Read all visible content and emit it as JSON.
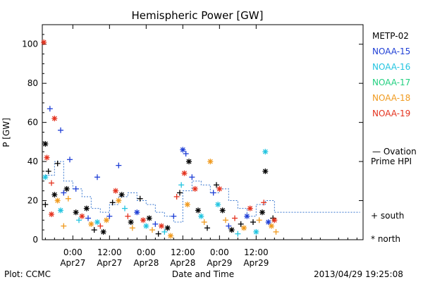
{
  "page": {
    "credit": "Plot: CCMC",
    "timestamp": "2013/04/29 19:25:08"
  },
  "chart_data": {
    "type": "scatter",
    "title": "Hemispheric Power [GW]",
    "xlabel": "Date and Time",
    "ylabel": "P [GW]",
    "ylim": [
      0,
      110
    ],
    "yticks": [
      0,
      20,
      40,
      60,
      80,
      100
    ],
    "xlim_hours": [
      -10,
      95
    ],
    "xticks": [
      {
        "hour": 0,
        "line1": "0:00",
        "line2": "Apr27"
      },
      {
        "hour": 12,
        "line1": "12:00",
        "line2": "Apr27"
      },
      {
        "hour": 24,
        "line1": "0:00",
        "line2": "Apr28"
      },
      {
        "hour": 36,
        "line1": "12:00",
        "line2": "Apr28"
      },
      {
        "hour": 48,
        "line1": "0:00",
        "line2": "Apr29"
      },
      {
        "hour": 60,
        "line1": "12:00",
        "line2": "Apr29"
      }
    ],
    "series": [
      {
        "name": "METP-02",
        "color": "#000000"
      },
      {
        "name": "NOAA-15",
        "color": "#1f3fd6"
      },
      {
        "name": "NOAA-16",
        "color": "#22c4e0"
      },
      {
        "name": "NOAA-17",
        "color": "#22d080"
      },
      {
        "name": "NOAA-18",
        "color": "#f09a1e"
      },
      {
        "name": "NOAA-19",
        "color": "#e4321e"
      }
    ],
    "ovation": {
      "label_line1": "— Ovation",
      "label_line2": "Prime HPI",
      "color": "#3a78d0",
      "x": [
        -9,
        -6,
        -3,
        0,
        3,
        6,
        9,
        12,
        15,
        18,
        21,
        24,
        27,
        30,
        33,
        36,
        39,
        42,
        45,
        48,
        51,
        54,
        57,
        60,
        63,
        66
      ],
      "y": [
        33,
        40,
        30,
        26,
        22,
        16,
        14,
        18,
        22,
        24,
        20,
        18,
        14,
        12,
        9,
        25,
        30,
        28,
        24,
        26,
        20,
        16,
        12,
        18,
        20,
        14
      ]
    },
    "marker_legend": {
      "south": "+ south",
      "north": "* north"
    },
    "points": [
      {
        "s": 5,
        "m": "n",
        "x": -9.5,
        "y": 101
      },
      {
        "s": 0,
        "m": "n",
        "x": -9,
        "y": 49
      },
      {
        "s": 5,
        "m": "n",
        "x": -8.5,
        "y": 42
      },
      {
        "s": 1,
        "m": "s",
        "x": -7.5,
        "y": 67
      },
      {
        "s": 5,
        "m": "n",
        "x": -6,
        "y": 62
      },
      {
        "s": 1,
        "m": "s",
        "x": -4,
        "y": 56
      },
      {
        "s": 0,
        "m": "s",
        "x": -5,
        "y": 39
      },
      {
        "s": 1,
        "m": "s",
        "x": -1,
        "y": 41
      },
      {
        "s": 2,
        "m": "n",
        "x": -9,
        "y": 32
      },
      {
        "s": 0,
        "m": "s",
        "x": -8,
        "y": 35
      },
      {
        "s": 5,
        "m": "s",
        "x": -7,
        "y": 29
      },
      {
        "s": 0,
        "m": "n",
        "x": -6,
        "y": 23
      },
      {
        "s": 4,
        "m": "n",
        "x": -5,
        "y": 20
      },
      {
        "s": 1,
        "m": "s",
        "x": -3,
        "y": 24
      },
      {
        "s": 0,
        "m": "n",
        "x": -2,
        "y": 26
      },
      {
        "s": 4,
        "m": "s",
        "x": -1.5,
        "y": 21
      },
      {
        "s": 2,
        "m": "n",
        "x": -4,
        "y": 15
      },
      {
        "s": 4,
        "m": "s",
        "x": -3,
        "y": 7
      },
      {
        "s": 5,
        "m": "n",
        "x": -7,
        "y": 13
      },
      {
        "s": 0,
        "m": "s",
        "x": -9,
        "y": 18
      },
      {
        "s": 1,
        "m": "s",
        "x": 1,
        "y": 26
      },
      {
        "s": 0,
        "m": "n",
        "x": 1,
        "y": 14
      },
      {
        "s": 2,
        "m": "s",
        "x": 2,
        "y": 10
      },
      {
        "s": 5,
        "m": "n",
        "x": 3,
        "y": 12
      },
      {
        "s": 0,
        "m": "n",
        "x": 4.5,
        "y": 16
      },
      {
        "s": 1,
        "m": "s",
        "x": 5,
        "y": 11
      },
      {
        "s": 4,
        "m": "n",
        "x": 6,
        "y": 8
      },
      {
        "s": 0,
        "m": "s",
        "x": 7,
        "y": 5
      },
      {
        "s": 1,
        "m": "s",
        "x": 8,
        "y": 32
      },
      {
        "s": 2,
        "m": "n",
        "x": 8,
        "y": 9
      },
      {
        "s": 5,
        "m": "s",
        "x": 9,
        "y": 7
      },
      {
        "s": 0,
        "m": "n",
        "x": 10,
        "y": 4
      },
      {
        "s": 4,
        "m": "n",
        "x": 11,
        "y": 10
      },
      {
        "s": 1,
        "m": "s",
        "x": 12,
        "y": 12
      },
      {
        "s": 0,
        "m": "s",
        "x": 13,
        "y": 19
      },
      {
        "s": 5,
        "m": "n",
        "x": 14,
        "y": 25
      },
      {
        "s": 1,
        "m": "s",
        "x": 15,
        "y": 38
      },
      {
        "s": 4,
        "m": "n",
        "x": 15,
        "y": 20
      },
      {
        "s": 0,
        "m": "n",
        "x": 16,
        "y": 23
      },
      {
        "s": 2,
        "m": "s",
        "x": 17,
        "y": 16
      },
      {
        "s": 5,
        "m": "s",
        "x": 18,
        "y": 12
      },
      {
        "s": 0,
        "m": "n",
        "x": 19,
        "y": 9
      },
      {
        "s": 4,
        "m": "s",
        "x": 19.5,
        "y": 6
      },
      {
        "s": 1,
        "m": "n",
        "x": 21,
        "y": 14
      },
      {
        "s": 0,
        "m": "s",
        "x": 22,
        "y": 21
      },
      {
        "s": 5,
        "m": "n",
        "x": 23,
        "y": 10
      },
      {
        "s": 2,
        "m": "n",
        "x": 24,
        "y": 7
      },
      {
        "s": 0,
        "m": "n",
        "x": 25,
        "y": 11
      },
      {
        "s": 4,
        "m": "s",
        "x": 26,
        "y": 5
      },
      {
        "s": 1,
        "m": "s",
        "x": 27,
        "y": 8
      },
      {
        "s": 0,
        "m": "s",
        "x": 28,
        "y": 3
      },
      {
        "s": 5,
        "m": "n",
        "x": 29,
        "y": 7
      },
      {
        "s": 2,
        "m": "s",
        "x": 30,
        "y": 4
      },
      {
        "s": 0,
        "m": "n",
        "x": 31,
        "y": 6
      },
      {
        "s": 4,
        "m": "n",
        "x": 32,
        "y": 2
      },
      {
        "s": 1,
        "m": "s",
        "x": 33,
        "y": 12
      },
      {
        "s": 5,
        "m": "s",
        "x": 34,
        "y": 22
      },
      {
        "s": 1,
        "m": "n",
        "x": 36,
        "y": 46
      },
      {
        "s": 1,
        "m": "s",
        "x": 37,
        "y": 44
      },
      {
        "s": 0,
        "m": "n",
        "x": 38,
        "y": 40
      },
      {
        "s": 5,
        "m": "n",
        "x": 36.5,
        "y": 34
      },
      {
        "s": 2,
        "m": "s",
        "x": 35.5,
        "y": 28
      },
      {
        "s": 0,
        "m": "s",
        "x": 35,
        "y": 24
      },
      {
        "s": 4,
        "m": "n",
        "x": 37.5,
        "y": 18
      },
      {
        "s": 1,
        "m": "s",
        "x": 39,
        "y": 32
      },
      {
        "s": 5,
        "m": "n",
        "x": 40,
        "y": 26
      },
      {
        "s": 0,
        "m": "n",
        "x": 41,
        "y": 15
      },
      {
        "s": 2,
        "m": "n",
        "x": 42,
        "y": 12
      },
      {
        "s": 4,
        "m": "s",
        "x": 43,
        "y": 9
      },
      {
        "s": 0,
        "m": "s",
        "x": 44,
        "y": 6
      },
      {
        "s": 4,
        "m": "n",
        "x": 45,
        "y": 40
      },
      {
        "s": 1,
        "m": "s",
        "x": 46,
        "y": 24
      },
      {
        "s": 0,
        "m": "s",
        "x": 47,
        "y": 28
      },
      {
        "s": 5,
        "m": "n",
        "x": 48,
        "y": 26
      },
      {
        "s": 2,
        "m": "n",
        "x": 47.5,
        "y": 18
      },
      {
        "s": 0,
        "m": "n",
        "x": 49,
        "y": 15
      },
      {
        "s": 4,
        "m": "s",
        "x": 50,
        "y": 10
      },
      {
        "s": 1,
        "m": "s",
        "x": 51,
        "y": 7
      },
      {
        "s": 0,
        "m": "n",
        "x": 52,
        "y": 5
      },
      {
        "s": 5,
        "m": "s",
        "x": 53,
        "y": 11
      },
      {
        "s": 2,
        "m": "s",
        "x": 54,
        "y": 3
      },
      {
        "s": 0,
        "m": "s",
        "x": 55,
        "y": 8
      },
      {
        "s": 4,
        "m": "n",
        "x": 56,
        "y": 6
      },
      {
        "s": 1,
        "m": "n",
        "x": 57,
        "y": 12
      },
      {
        "s": 5,
        "m": "n",
        "x": 58,
        "y": 16
      },
      {
        "s": 0,
        "m": "s",
        "x": 59,
        "y": 9
      },
      {
        "s": 2,
        "m": "n",
        "x": 60,
        "y": 4
      },
      {
        "s": 4,
        "m": "s",
        "x": 61,
        "y": 10
      },
      {
        "s": 0,
        "m": "n",
        "x": 62,
        "y": 14
      },
      {
        "s": 2,
        "m": "n",
        "x": 63,
        "y": 45
      },
      {
        "s": 0,
        "m": "n",
        "x": 63,
        "y": 35
      },
      {
        "s": 5,
        "m": "s",
        "x": 62.5,
        "y": 19
      },
      {
        "s": 1,
        "m": "n",
        "x": 64,
        "y": 9
      },
      {
        "s": 4,
        "m": "n",
        "x": 65,
        "y": 7
      },
      {
        "s": 0,
        "m": "s",
        "x": 65.5,
        "y": 11
      },
      {
        "s": 5,
        "m": "n",
        "x": 66,
        "y": 10
      },
      {
        "s": 4,
        "m": "s",
        "x": 66.5,
        "y": 4
      }
    ]
  }
}
